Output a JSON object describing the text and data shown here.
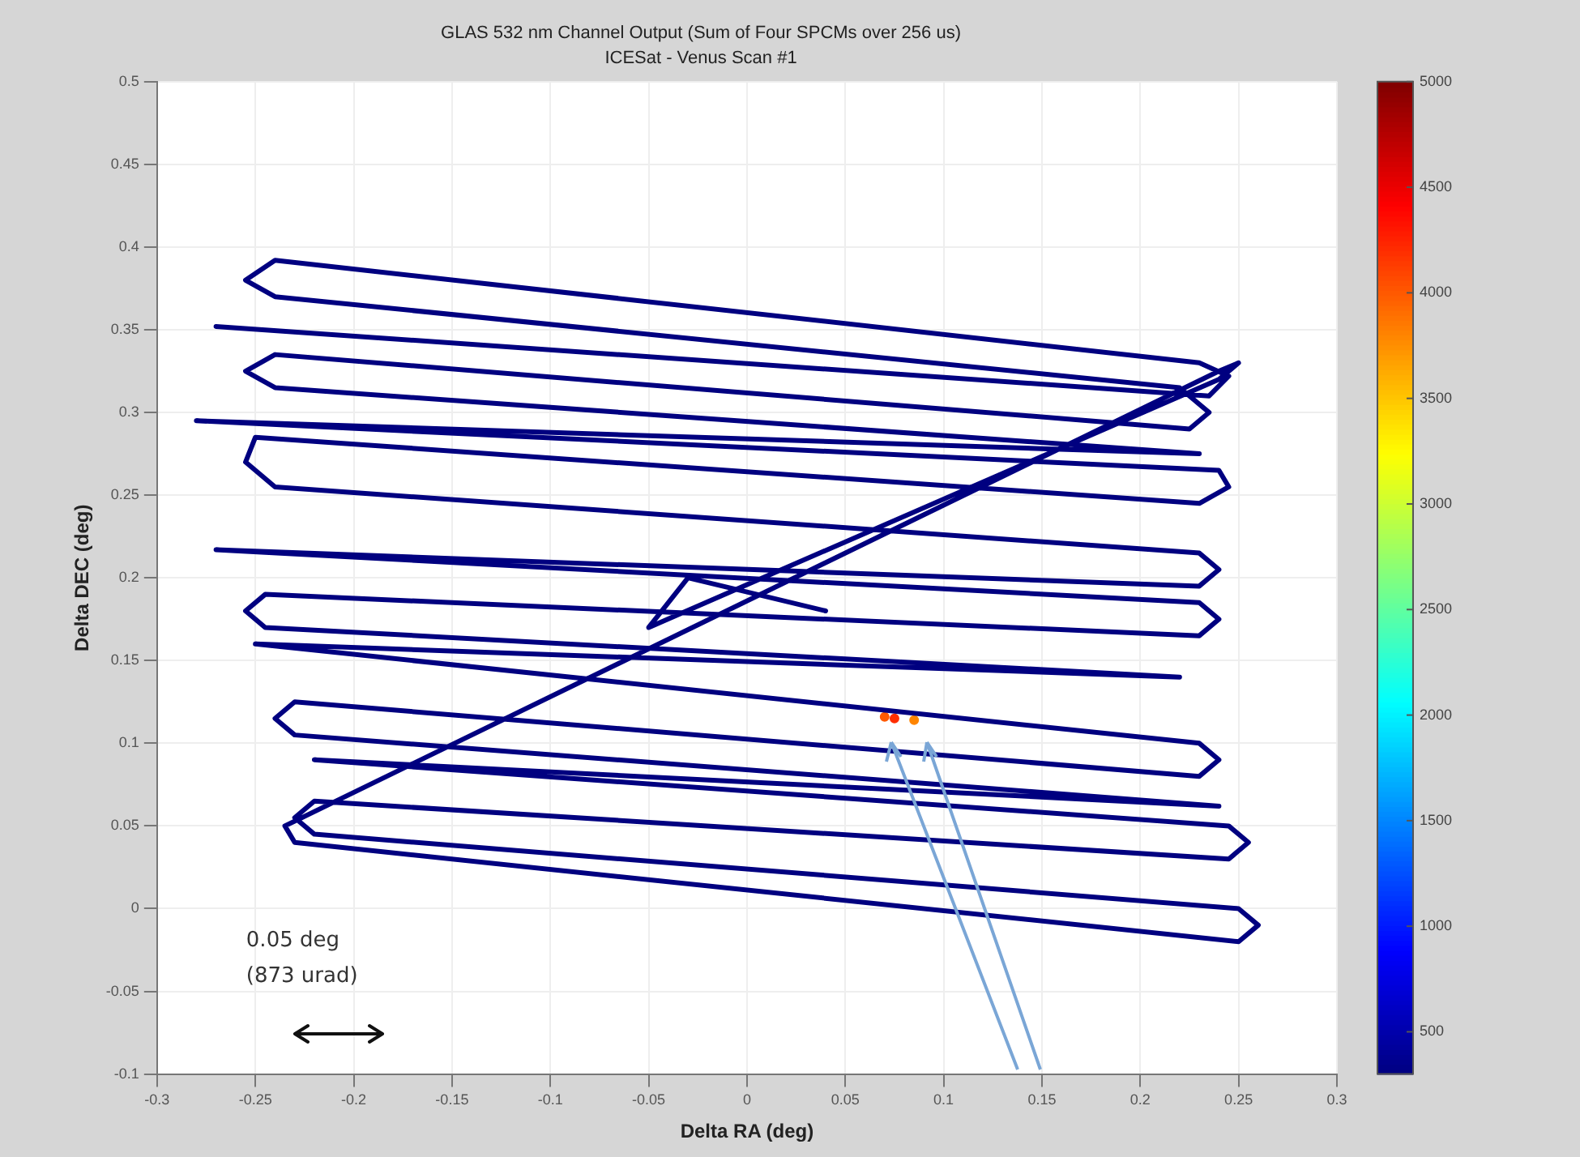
{
  "chart_data": {
    "type": "line",
    "title": "GLAS 532 nm Channel Output (Sum of Four SPCMs over 256 us)",
    "subtitle": "ICESat - Venus Scan #1",
    "xlabel": "Delta RA (deg)",
    "ylabel": "Delta DEC (deg)",
    "xlim": [
      -0.3,
      0.3
    ],
    "ylim": [
      -0.1,
      0.5
    ],
    "xticks": [
      -0.3,
      -0.25,
      -0.2,
      -0.15,
      -0.1,
      -0.05,
      0,
      0.05,
      0.1,
      0.15,
      0.2,
      0.25,
      0.3
    ],
    "yticks": [
      -0.1,
      -0.05,
      0,
      0.05,
      0.1,
      0.15,
      0.2,
      0.25,
      0.3,
      0.35,
      0.4,
      0.45,
      0.5
    ],
    "clim": [
      300,
      5000
    ],
    "cticks": [
      500,
      1000,
      1500,
      2000,
      2500,
      3000,
      3500,
      4000,
      4500,
      5000
    ],
    "grid": true,
    "annotations": [
      "0.05 deg",
      "(873 urad)"
    ],
    "x": [
      -0.27,
      0.235,
      0.245,
      0.23,
      -0.24,
      -0.255,
      -0.24,
      0.22,
      0.235,
      0.225,
      -0.24,
      -0.255,
      -0.24,
      0.23,
      -0.28,
      0.24,
      0.245,
      0.23,
      -0.25,
      -0.255,
      -0.24,
      0.23,
      0.24,
      0.23,
      -0.27,
      0.23,
      0.24,
      0.23,
      -0.245,
      -0.255,
      -0.245,
      0.22,
      -0.25,
      0.23,
      0.24,
      0.23,
      -0.23,
      -0.24,
      -0.23,
      0.24,
      -0.22,
      0.245,
      0.255,
      0.245,
      -0.22,
      -0.23,
      -0.22,
      0.25,
      0.26,
      0.25,
      -0.23,
      -0.235,
      0.24,
      0.25,
      0.24,
      -0.05,
      -0.03,
      0.04
    ],
    "series": [
      {
        "color": "#000080",
        "values": [
          0.352,
          0.31,
          0.322,
          0.33,
          0.392,
          0.38,
          0.37,
          0.315,
          0.3,
          0.29,
          0.335,
          0.325,
          0.315,
          0.275,
          0.295,
          0.265,
          0.255,
          0.245,
          0.285,
          0.27,
          0.255,
          0.215,
          0.205,
          0.195,
          0.217,
          0.185,
          0.175,
          0.165,
          0.19,
          0.18,
          0.17,
          0.14,
          0.16,
          0.1,
          0.09,
          0.08,
          0.125,
          0.115,
          0.105,
          0.062,
          0.09,
          0.05,
          0.04,
          0.03,
          0.065,
          0.055,
          0.045,
          0.0,
          -0.01,
          -0.02,
          0.04,
          0.05,
          0.325,
          0.33,
          0.32,
          0.17,
          0.2,
          0.18
        ]
      },
      {
        "type": "scatter",
        "marker": "circle",
        "x": [
          0.07,
          0.075,
          0.085
        ],
        "values": [
          0.116,
          0.115,
          0.114
        ],
        "cvalues": [
          4000,
          4200,
          3800
        ],
        "colors": [
          "#ff5900",
          "#ff2e00",
          "#ff8500"
        ]
      }
    ]
  }
}
